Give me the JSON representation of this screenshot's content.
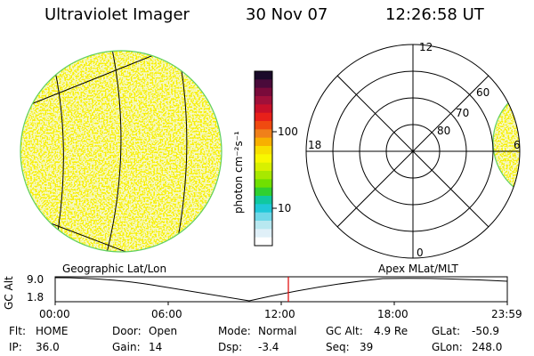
{
  "header": {
    "instrument": "Ultraviolet Imager",
    "date": "30 Nov 07",
    "time": "12:26:58 UT"
  },
  "colorbar": {
    "unit_label": "photon cm⁻²s⁻¹",
    "tick_100": "100",
    "tick_10": "10",
    "colors_top_to_bottom": [
      "#1a0a2a",
      "#4a0a3a",
      "#7a0a3a",
      "#a0103a",
      "#c8102a",
      "#e8201a",
      "#f04a10",
      "#f0801a",
      "#f8b000",
      "#f8e000",
      "#f8f800",
      "#d8f000",
      "#a8e800",
      "#70e000",
      "#30d030",
      "#10c8a0",
      "#20c8d8",
      "#70d8e8",
      "#b8e8f0",
      "#e0f0f8",
      "#ffffff"
    ]
  },
  "left_panel": {
    "caption": "Geographic Lat/Lon",
    "fill_color": "#f8f000",
    "speckle_color": "#e8f0a0"
  },
  "right_panel": {
    "caption": "Apex MLat/MLT",
    "lat_labels": [
      "60",
      "70",
      "80"
    ],
    "mlt_labels": {
      "top": "12",
      "left": "18",
      "right": "6",
      "bottom": "0"
    }
  },
  "timeline": {
    "y_axis_label": "GC Alt",
    "y_max": "9.0",
    "y_min": "1.8",
    "ticks": [
      "00:00",
      "06:00",
      "12:00",
      "18:00",
      "23:59"
    ],
    "current_time_marker_color": "#e00000"
  },
  "status": {
    "flt_label": "Flt:",
    "flt_value": "HOME",
    "ip_label": "IP:",
    "ip_value": "36.0",
    "door_label": "Door:",
    "door_value": "Open",
    "gain_label": "Gain:",
    "gain_value": "14",
    "mode_label": "Mode:",
    "mode_value": "Normal",
    "dsp_label": "Dsp:",
    "dsp_value": "-3.4",
    "gcalt_label": "GC Alt:",
    "gcalt_value": "4.9 Re",
    "seq_label": "Seq:",
    "seq_value": "39",
    "glat_label": "GLat:",
    "glat_value": "-50.9",
    "glon_label": "GLon:",
    "glon_value": "248.0"
  }
}
